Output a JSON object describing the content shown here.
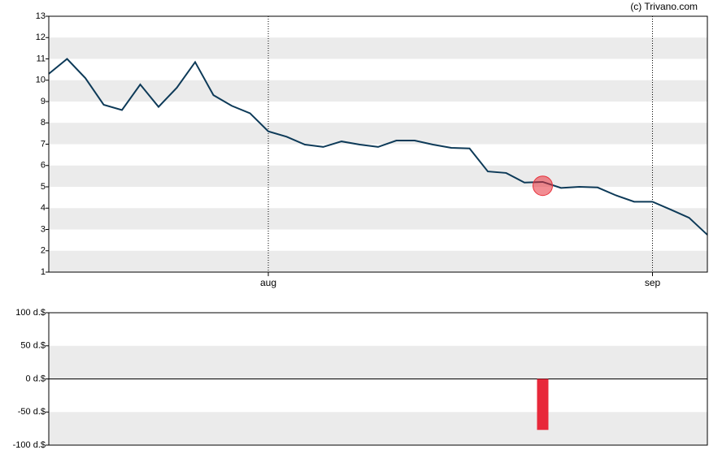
{
  "watermark": "(c) Trivano.com",
  "chart_data": [
    {
      "type": "line",
      "x": [
        0,
        1,
        2,
        3,
        4,
        5,
        6,
        7,
        8,
        9,
        10,
        11,
        12,
        13,
        14,
        15,
        16,
        17,
        18,
        19,
        20,
        21,
        22,
        23,
        24,
        25,
        26,
        27,
        28,
        29,
        30,
        31,
        32,
        33,
        34,
        35,
        36
      ],
      "series": [
        {
          "color": "#0d3a58",
          "values": [
            10.3,
            11.0,
            10.1,
            8.85,
            8.6,
            9.8,
            8.75,
            9.65,
            10.85,
            9.3,
            8.8,
            8.45,
            7.6,
            7.35,
            6.98,
            6.87,
            7.13,
            6.98,
            6.87,
            7.17,
            7.17,
            6.98,
            6.83,
            6.8,
            5.72,
            5.65,
            5.2,
            5.23,
            4.95,
            5.0,
            4.97,
            4.6,
            4.3,
            4.3,
            3.93,
            3.55,
            2.75
          ]
        }
      ],
      "highlight": {
        "x": 27,
        "value": 5.05,
        "color": "#e8303a"
      },
      "xlim": [
        0,
        36
      ],
      "xticks": [
        {
          "value": 12,
          "label": "aug"
        },
        {
          "value": 33,
          "label": "sep"
        }
      ],
      "ylim": [
        1,
        13
      ],
      "yticks": [
        1,
        2,
        3,
        4,
        5,
        6,
        7,
        8,
        9,
        10,
        11,
        12,
        13
      ],
      "grid": true
    },
    {
      "type": "bar",
      "x": [
        27
      ],
      "values": [
        -77
      ],
      "color": "#e8283a",
      "xlim": [
        0,
        36
      ],
      "ylim": [
        -100,
        100
      ],
      "yticks": [
        {
          "value": 100,
          "label": "100 d.$"
        },
        {
          "value": 50,
          "label": "50 d.$"
        },
        {
          "value": 0,
          "label": "0 d.$"
        },
        {
          "value": -50,
          "label": "-50 d.$"
        },
        {
          "value": -100,
          "label": "-100 d.$"
        }
      ],
      "grid": true
    }
  ]
}
